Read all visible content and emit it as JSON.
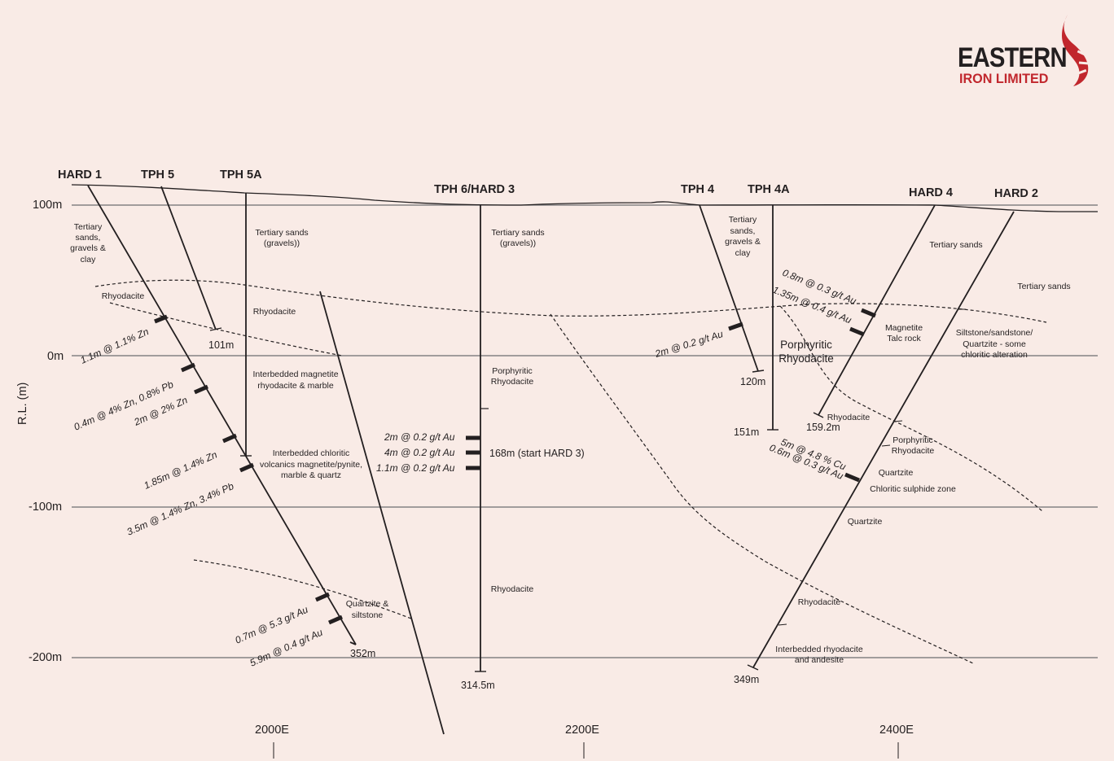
{
  "logo": {
    "line1": "EASTERN",
    "line2": "IRON LIMITED",
    "accent_color": "#c1272d"
  },
  "axis": {
    "y_title": "R.L. (m)",
    "y_ticks": [
      "100m",
      "0m",
      "-100m",
      "-200m"
    ],
    "x_ticks": [
      "2000E",
      "2200E",
      "2400E"
    ]
  },
  "holes": [
    "HARD 1",
    "TPH 5",
    "TPH 5A",
    "TPH 6/HARD 3",
    "TPH 4",
    "TPH 4A",
    "HARD 4",
    "HARD 2"
  ],
  "depths": [
    "101m",
    "352m",
    "314.5m",
    "168m (start HARD 3)",
    "120m",
    "151m",
    "159.2m",
    "349m"
  ],
  "intercepts": [
    "1.1m @ 1.1% Zn",
    "0.4m @ 4% Zn, 0.8% Pb",
    "2m @ 2% Zn",
    "1.85m @ 1.4% Zn",
    "3.5m @ 1.4% Zn, 3.4% Pb",
    "0.7m @ 5.3 g/t Au",
    "5.9m @ 0.4 g/t Au",
    "2m @ 0.2 g/t Au",
    "4m @ 0.2 g/t Au",
    "1.1m @ 0.2 g/t Au",
    "2m @ 0.2 g/t Au",
    "0.8m @ 0.3 g/t Au",
    "1.35m @ 0.4 g/t Au",
    "5m @ 4.8 % Cu",
    "0.6m @ 0.3 g/t Au"
  ],
  "geology": {
    "tertiary_left": [
      "Tertiary",
      "sands,",
      "gravels &",
      "clay"
    ],
    "tertiary_gravels": [
      "Tertiary sands",
      "(gravels))"
    ],
    "tertiary_tph4": [
      "Tertiary",
      "sands,",
      "gravels &",
      "clay"
    ],
    "tertiary_sands_a": "Tertiary sands",
    "tertiary_sands_b": "Tertiary sands",
    "rhyodacite": "Rhyodacite",
    "interbedded_mag": [
      "Interbedded magnetite",
      "rhyodacite & marble"
    ],
    "interbedded_chl": [
      "Interbedded chloritic",
      "volcanics magnetite/pynite,",
      "marble & quartz"
    ],
    "quartzite_silt": [
      "Quartzite &",
      "siltstone"
    ],
    "porph_rhyo": [
      "Porphyritic",
      "Rhyodacite"
    ],
    "porph_rhyo_big": [
      "Porphyritic",
      "Rhyodacite"
    ],
    "magnetite_talc": [
      "Magnetite",
      "Talc rock"
    ],
    "siltstone": [
      "Siltstone/sandstone/",
      "Quartzite - some",
      "chloritic alteration"
    ],
    "quartzite": "Quartzite",
    "chloritic_sulphide": "Chloritic sulphide zone",
    "interbedded_rhyo_andesite": [
      "Interbedded rhyodacite",
      "and andesite"
    ]
  }
}
